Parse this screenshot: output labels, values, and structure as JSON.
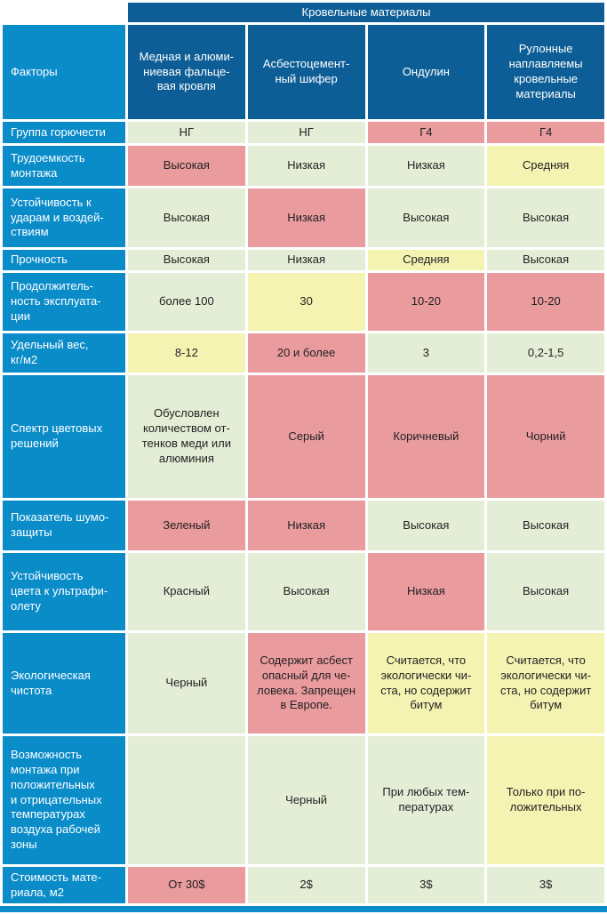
{
  "colors": {
    "header_dark_blue": "#0d5e96",
    "row_label_blue": "#0a8cc9",
    "cell_green": "#e4eed6",
    "cell_pink": "#ea9b9e",
    "cell_yellow": "#f5f3b2",
    "header_text": "#ffffff",
    "body_text": "#222222",
    "grid_gap": "#ffffff"
  },
  "table": {
    "banner": "Кровельные материалы",
    "corner_label": "Факторы",
    "columns": [
      "Медная и алюми-\nниевая фальце-\nвая кровля",
      "Асбестоцемент-\nный шифер",
      "Ондулин",
      "Рулонные\nнаплавляемы\nкровельные\nматериалы"
    ],
    "rows": [
      {
        "label": "Группа горючести",
        "cells": [
          {
            "text": "НГ",
            "tone": "green"
          },
          {
            "text": "НГ",
            "tone": "green"
          },
          {
            "text": "Г4",
            "tone": "pink"
          },
          {
            "text": "Г4",
            "tone": "pink"
          }
        ]
      },
      {
        "label": "Трудоемкость\nмонтажа",
        "cells": [
          {
            "text": "Высокая",
            "tone": "pink"
          },
          {
            "text": "Низкая",
            "tone": "green"
          },
          {
            "text": "Низкая",
            "tone": "green"
          },
          {
            "text": "Средняя",
            "tone": "yellow"
          }
        ]
      },
      {
        "label": "Устойчивость к\nударам и воздей-\nствиям",
        "cells": [
          {
            "text": "Высокая",
            "tone": "green"
          },
          {
            "text": "Низкая",
            "tone": "pink"
          },
          {
            "text": "Высокая",
            "tone": "green"
          },
          {
            "text": "Высокая",
            "tone": "green"
          }
        ]
      },
      {
        "label": "Прочность",
        "cells": [
          {
            "text": "Высокая",
            "tone": "green"
          },
          {
            "text": "Низкая",
            "tone": "green"
          },
          {
            "text": "Средняя",
            "tone": "yellow"
          },
          {
            "text": "Высокая",
            "tone": "green"
          }
        ]
      },
      {
        "label": "Продолжитель-\nность эксплуата-\nции",
        "cells": [
          {
            "text": "более 100",
            "tone": "green"
          },
          {
            "text": "30",
            "tone": "yellow"
          },
          {
            "text": "10-20",
            "tone": "pink"
          },
          {
            "text": "10-20",
            "tone": "pink"
          }
        ]
      },
      {
        "label": "Удельный вес,\nкг/м2",
        "cells": [
          {
            "text": "8-12",
            "tone": "yellow"
          },
          {
            "text": "20 и более",
            "tone": "pink"
          },
          {
            "text": "3",
            "tone": "green"
          },
          {
            "text": "0,2-1,5",
            "tone": "green"
          }
        ]
      },
      {
        "label": "Спектр цветовых\nрешений",
        "cells": [
          {
            "text": "Обусловлен\nколичеством от-\nтенков меди или\nалюминия",
            "tone": "green"
          },
          {
            "text": "Серый",
            "tone": "pink"
          },
          {
            "text": "Коричневый",
            "tone": "pink"
          },
          {
            "text": "Чорний",
            "tone": "pink"
          }
        ]
      },
      {
        "label": "Показатель шумо-\nзащиты",
        "cells": [
          {
            "text": "Зеленый",
            "tone": "pink"
          },
          {
            "text": "Низкая",
            "tone": "pink"
          },
          {
            "text": "Высокая",
            "tone": "green"
          },
          {
            "text": "Высокая",
            "tone": "green"
          }
        ]
      },
      {
        "label": "Устойчивость\nцвета к ультрафи-\nолету",
        "cells": [
          {
            "text": "Красный",
            "tone": "green"
          },
          {
            "text": "Высокая",
            "tone": "green"
          },
          {
            "text": "Низкая",
            "tone": "pink"
          },
          {
            "text": "Высокая",
            "tone": "green"
          }
        ]
      },
      {
        "label": "Экологическая\nчистота",
        "cells": [
          {
            "text": "Черный",
            "tone": "green"
          },
          {
            "text": "Содержит асбест\nопасный для че-\nловека. Запрещен\nв Европе.",
            "tone": "pink"
          },
          {
            "text": "Считается, что\nэкологически чи-\nста, но содержит\nбитум",
            "tone": "yellow"
          },
          {
            "text": "Считается, что\nэкологически чи-\nста, но содержит\nбитум",
            "tone": "yellow"
          }
        ]
      },
      {
        "label": "Возможность\nмонтажа при\nположительных\nи отрицательных\nтемпературах\nвоздуха рабочей\nзоны",
        "cells": [
          {
            "text": "",
            "tone": "green"
          },
          {
            "text": "Черный",
            "tone": "green"
          },
          {
            "text": "При любых тем-\nпературах",
            "tone": "green"
          },
          {
            "text": "Только при по-\nложительных",
            "tone": "yellow"
          }
        ]
      },
      {
        "label": "Стоимость мате-\nриала, м2",
        "cells": [
          {
            "text": "От 30$",
            "tone": "pink"
          },
          {
            "text": "2$",
            "tone": "green"
          },
          {
            "text": "3$",
            "tone": "green"
          },
          {
            "text": "3$",
            "tone": "green"
          }
        ]
      }
    ]
  }
}
